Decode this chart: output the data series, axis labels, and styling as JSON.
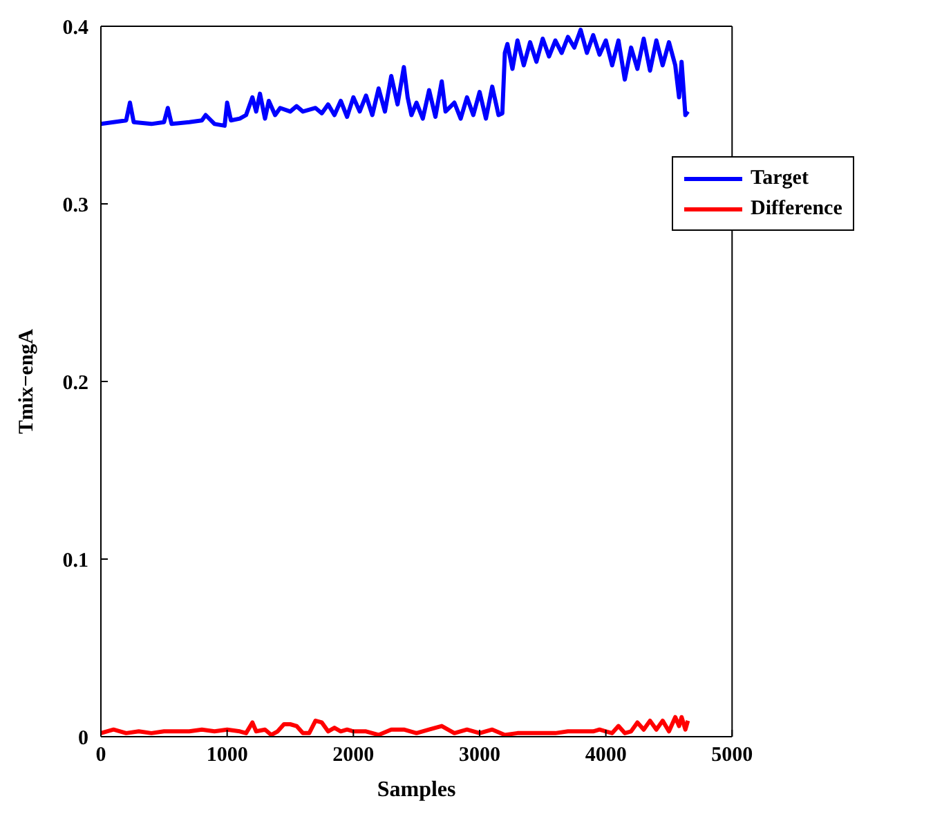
{
  "chart_data": {
    "type": "line",
    "xlabel": "Samples",
    "ylabel": "Tmix−engA",
    "xlim": [
      0,
      5000
    ],
    "ylim": [
      0,
      0.4
    ],
    "xticks": [
      0,
      1000,
      2000,
      3000,
      4000,
      5000
    ],
    "yticks": [
      0,
      0.1,
      0.2,
      0.3,
      0.4
    ],
    "legend": "top right",
    "grid": false,
    "marker": "none",
    "line_style": "solid",
    "series": [
      {
        "name": "Target",
        "color": "#0000ff",
        "x": [
          0,
          100,
          200,
          230,
          260,
          400,
          500,
          530,
          560,
          700,
          800,
          830,
          900,
          980,
          1000,
          1030,
          1100,
          1150,
          1200,
          1230,
          1260,
          1300,
          1330,
          1380,
          1420,
          1500,
          1550,
          1600,
          1700,
          1750,
          1800,
          1850,
          1900,
          1950,
          2000,
          2050,
          2100,
          2150,
          2200,
          2250,
          2300,
          2350,
          2400,
          2430,
          2460,
          2500,
          2550,
          2600,
          2650,
          2700,
          2730,
          2800,
          2850,
          2900,
          2950,
          3000,
          3050,
          3100,
          3150,
          3180,
          3200,
          3220,
          3260,
          3300,
          3350,
          3400,
          3450,
          3500,
          3550,
          3600,
          3650,
          3700,
          3750,
          3800,
          3850,
          3900,
          3950,
          4000,
          4050,
          4100,
          4150,
          4200,
          4250,
          4300,
          4350,
          4400,
          4450,
          4500,
          4550,
          4580,
          4600,
          4630,
          4650
        ],
        "values": [
          0.345,
          0.346,
          0.347,
          0.357,
          0.346,
          0.345,
          0.346,
          0.354,
          0.345,
          0.346,
          0.347,
          0.35,
          0.345,
          0.344,
          0.357,
          0.347,
          0.348,
          0.35,
          0.36,
          0.352,
          0.362,
          0.348,
          0.358,
          0.35,
          0.354,
          0.352,
          0.355,
          0.352,
          0.354,
          0.351,
          0.356,
          0.35,
          0.358,
          0.349,
          0.36,
          0.352,
          0.361,
          0.35,
          0.365,
          0.352,
          0.372,
          0.356,
          0.377,
          0.36,
          0.35,
          0.357,
          0.348,
          0.364,
          0.349,
          0.369,
          0.352,
          0.357,
          0.348,
          0.36,
          0.35,
          0.363,
          0.348,
          0.366,
          0.35,
          0.351,
          0.385,
          0.39,
          0.376,
          0.392,
          0.378,
          0.391,
          0.38,
          0.393,
          0.383,
          0.392,
          0.385,
          0.394,
          0.388,
          0.398,
          0.385,
          0.395,
          0.384,
          0.392,
          0.378,
          0.392,
          0.37,
          0.388,
          0.376,
          0.393,
          0.375,
          0.392,
          0.378,
          0.391,
          0.378,
          0.36,
          0.38,
          0.35,
          0.352
        ]
      },
      {
        "name": "Difference",
        "color": "#ff0000",
        "x": [
          0,
          100,
          200,
          300,
          400,
          500,
          600,
          700,
          800,
          900,
          1000,
          1100,
          1150,
          1200,
          1230,
          1300,
          1350,
          1400,
          1450,
          1500,
          1550,
          1600,
          1650,
          1700,
          1750,
          1800,
          1850,
          1900,
          1950,
          2000,
          2100,
          2200,
          2300,
          2400,
          2500,
          2600,
          2700,
          2800,
          2900,
          3000,
          3100,
          3200,
          3300,
          3400,
          3500,
          3600,
          3700,
          3800,
          3900,
          3950,
          4000,
          4050,
          4100,
          4150,
          4200,
          4250,
          4300,
          4350,
          4400,
          4450,
          4500,
          4550,
          4580,
          4600,
          4630,
          4650
        ],
        "values": [
          0.002,
          0.004,
          0.002,
          0.003,
          0.002,
          0.003,
          0.003,
          0.003,
          0.004,
          0.003,
          0.004,
          0.003,
          0.002,
          0.008,
          0.003,
          0.004,
          0.001,
          0.003,
          0.007,
          0.007,
          0.006,
          0.002,
          0.002,
          0.009,
          0.008,
          0.003,
          0.005,
          0.003,
          0.004,
          0.003,
          0.003,
          0.001,
          0.004,
          0.004,
          0.002,
          0.004,
          0.006,
          0.002,
          0.004,
          0.002,
          0.004,
          0.001,
          0.002,
          0.002,
          0.002,
          0.002,
          0.003,
          0.003,
          0.003,
          0.004,
          0.003,
          0.002,
          0.006,
          0.002,
          0.003,
          0.008,
          0.004,
          0.009,
          0.004,
          0.009,
          0.003,
          0.011,
          0.006,
          0.011,
          0.004,
          0.009
        ]
      }
    ]
  }
}
